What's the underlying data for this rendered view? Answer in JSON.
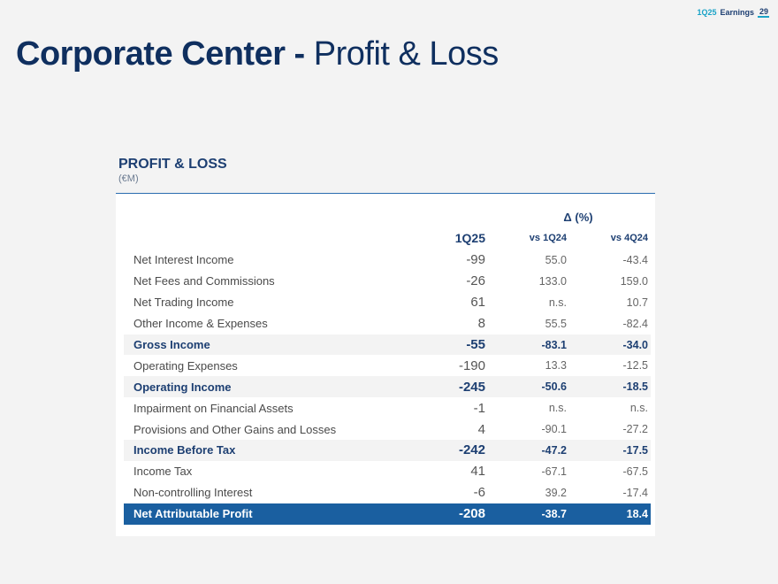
{
  "header": {
    "period": "1Q25",
    "report": "Earnings",
    "page_number": "29"
  },
  "title": {
    "bold": "Corporate Center -",
    "light": "Profit & Loss"
  },
  "section": {
    "title": "PROFIT & LOSS",
    "unit": "(€M)"
  },
  "table": {
    "delta_header": "Δ (%)",
    "columns": [
      "1Q25",
      "vs 1Q24",
      "vs 4Q24"
    ],
    "rows": [
      {
        "label": "Net Interest Income",
        "v1": "-99",
        "v2": "55.0",
        "v3": "-43.4",
        "style": "normal"
      },
      {
        "label": "Net Fees and Commissions",
        "v1": "-26",
        "v2": "133.0",
        "v3": "159.0",
        "style": "normal"
      },
      {
        "label": "Net Trading Income",
        "v1": "61",
        "v2": "n.s.",
        "v3": "10.7",
        "style": "normal"
      },
      {
        "label": "Other Income & Expenses",
        "v1": "8",
        "v2": "55.5",
        "v3": "-82.4",
        "style": "normal"
      },
      {
        "label": "Gross Income",
        "v1": "-55",
        "v2": "-83.1",
        "v3": "-34.0",
        "style": "bold"
      },
      {
        "label": "Operating Expenses",
        "v1": "-190",
        "v2": "13.3",
        "v3": "-12.5",
        "style": "normal"
      },
      {
        "label": "Operating Income",
        "v1": "-245",
        "v2": "-50.6",
        "v3": "-18.5",
        "style": "bold"
      },
      {
        "label": "Impairment on Financial Assets",
        "v1": "-1",
        "v2": "n.s.",
        "v3": "n.s.",
        "style": "normal"
      },
      {
        "label": "Provisions and Other Gains and Losses",
        "v1": "4",
        "v2": "-90.1",
        "v3": "-27.2",
        "style": "normal"
      },
      {
        "label": "Income Before Tax",
        "v1": "-242",
        "v2": "-47.2",
        "v3": "-17.5",
        "style": "bold"
      },
      {
        "label": "Income Tax",
        "v1": "41",
        "v2": "-67.1",
        "v3": "-67.5",
        "style": "normal"
      },
      {
        "label": "Non-controlling Interest",
        "v1": "-6",
        "v2": "39.2",
        "v3": "-17.4",
        "style": "normal"
      },
      {
        "label": "Net Attributable Profit",
        "v1": "-208",
        "v2": "-38.7",
        "v3": "18.4",
        "style": "total"
      }
    ]
  },
  "colors": {
    "navy": "#1d3f72",
    "title_navy": "#0f2f5f",
    "accent_teal": "#1aa3c7",
    "total_row_bg": "#1a5fa0",
    "bold_row_bg": "#f3f3f3",
    "page_bg": "#f3f3f3"
  }
}
